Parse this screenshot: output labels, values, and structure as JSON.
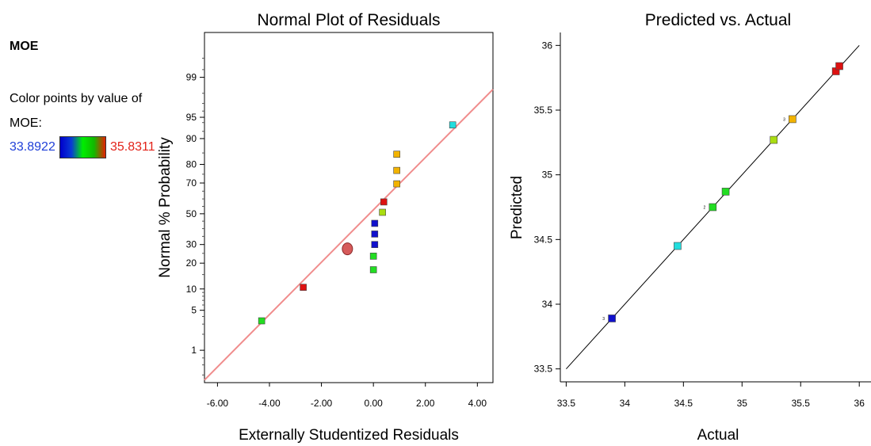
{
  "sidebar": {
    "response": "MOE",
    "color_caption_line1": "Color points by value of",
    "color_caption_line2": "MOE:",
    "range_min": "33.8922",
    "range_max": "35.8311",
    "gradient_colors": [
      "#0000cc",
      "#0a3ad6",
      "#00ee00",
      "#12b800",
      "#e62000"
    ]
  },
  "chart_data": [
    {
      "type": "scatter",
      "title": "Normal Plot of Residuals",
      "xlabel": "Externally Studentized Residuals",
      "ylabel": "Normal % Probability",
      "xlim": [
        -6.5,
        4.6
      ],
      "x_ticks": [
        "-6.00",
        "-4.00",
        "-2.00",
        "0.00",
        "2.00",
        "4.00"
      ],
      "x_tick_values": [
        -6,
        -4,
        -2,
        0,
        2,
        4
      ],
      "y_scale": "normal-probability",
      "ylim_probability": [
        0.2,
        99.9
      ],
      "y_ticks": [
        "1",
        "5",
        "10",
        "20",
        "30",
        "50",
        "70",
        "80",
        "90",
        "95",
        "99"
      ],
      "y_tick_values": [
        1,
        5,
        10,
        20,
        30,
        50,
        70,
        80,
        90,
        95,
        99
      ],
      "reference_line": {
        "color": "#f08c8c",
        "points": [
          [
            -6.5,
            0.23
          ],
          [
            4.6,
            98.3
          ]
        ]
      },
      "points": [
        {
          "x": -4.3,
          "y": 3.4,
          "color": "#22dd22"
        },
        {
          "x": -2.7,
          "y": 10.5,
          "color": "#dd1111"
        },
        {
          "x": 0.0,
          "y": 17.0,
          "color": "#22dd22"
        },
        {
          "x": 0.0,
          "y": 23.5,
          "color": "#22dd22"
        },
        {
          "x": 0.05,
          "y": 30.0,
          "color": "#1111cc"
        },
        {
          "x": 0.05,
          "y": 36.5,
          "color": "#1111cc"
        },
        {
          "x": 0.05,
          "y": 43.5,
          "color": "#1111cc"
        },
        {
          "x": 0.35,
          "y": 51.0,
          "color": "#aadd11"
        },
        {
          "x": 0.4,
          "y": 58.0,
          "color": "#dd1111"
        },
        {
          "x": 0.9,
          "y": 69.5,
          "color": "#f2b300"
        },
        {
          "x": 0.9,
          "y": 77.0,
          "color": "#f2b300"
        },
        {
          "x": 0.9,
          "y": 84.5,
          "color": "#f2b300"
        },
        {
          "x": 3.05,
          "y": 93.5,
          "color": "#22dddd"
        }
      ],
      "highlight_point": {
        "x": -1.0,
        "y": 27.5,
        "color": "#d65a5a"
      }
    },
    {
      "type": "scatter",
      "title": "Predicted vs. Actual",
      "xlabel": "Actual",
      "ylabel": "Predicted",
      "xlim": [
        33.45,
        36.1
      ],
      "ylim": [
        33.4,
        36.1
      ],
      "x_ticks": [
        "33.5",
        "34",
        "34.5",
        "35",
        "35.5",
        "36"
      ],
      "x_tick_values": [
        33.5,
        34,
        34.5,
        35,
        35.5,
        36
      ],
      "y_ticks": [
        "33.5",
        "34",
        "34.5",
        "35",
        "35.5",
        "36"
      ],
      "y_tick_values": [
        33.5,
        34,
        34.5,
        35,
        35.5,
        36
      ],
      "reference_line": {
        "color": "#000000",
        "points": [
          [
            33.5,
            33.5
          ],
          [
            36.0,
            36.0
          ]
        ]
      },
      "points": [
        {
          "x": 33.89,
          "y": 33.89,
          "color": "#1111cc",
          "label": "3"
        },
        {
          "x": 34.45,
          "y": 34.45,
          "color": "#22dddd",
          "label": ""
        },
        {
          "x": 34.75,
          "y": 34.75,
          "color": "#22dd22",
          "label": "2"
        },
        {
          "x": 34.86,
          "y": 34.87,
          "color": "#22dd22",
          "label": ""
        },
        {
          "x": 35.27,
          "y": 35.27,
          "color": "#aadd11",
          "label": ""
        },
        {
          "x": 35.43,
          "y": 35.43,
          "color": "#f2b300",
          "label": "3"
        },
        {
          "x": 35.8,
          "y": 35.8,
          "color": "#dd1111",
          "label": ""
        },
        {
          "x": 35.83,
          "y": 35.84,
          "color": "#dd1111",
          "label": ""
        }
      ]
    }
  ]
}
